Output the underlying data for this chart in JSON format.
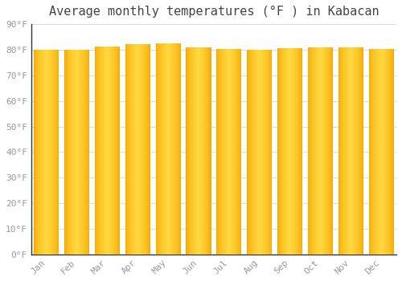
{
  "months": [
    "Jan",
    "Feb",
    "Mar",
    "Apr",
    "May",
    "Jun",
    "Jul",
    "Aug",
    "Sep",
    "Oct",
    "Nov",
    "Dec"
  ],
  "values": [
    79.9,
    79.9,
    81.3,
    82.2,
    82.4,
    81.0,
    80.4,
    80.1,
    80.6,
    80.8,
    80.8,
    80.4
  ],
  "bar_color_edge": "#F5A800",
  "bar_color_center": "#FFD840",
  "title": "Average monthly temperatures (°F ) in Kabacan",
  "ylim": [
    0,
    90
  ],
  "yticks": [
    0,
    10,
    20,
    30,
    40,
    50,
    60,
    70,
    80,
    90
  ],
  "ytick_labels": [
    "0°F",
    "10°F",
    "20°F",
    "30°F",
    "40°F",
    "50°F",
    "60°F",
    "70°F",
    "80°F",
    "90°F"
  ],
  "background_color": "#FFFFFF",
  "grid_color": "#DDDDDD",
  "title_fontsize": 11,
  "tick_fontsize": 8,
  "tick_color": "#999999",
  "font_family": "monospace",
  "bar_width": 0.82,
  "n_grad": 60
}
